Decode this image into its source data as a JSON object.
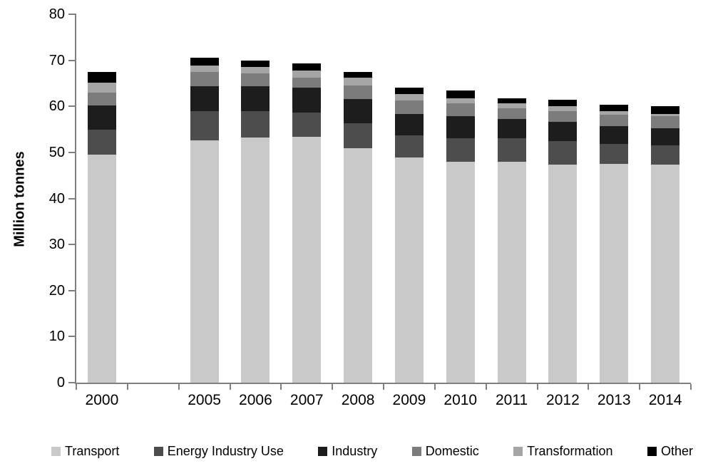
{
  "chart_data": {
    "type": "bar",
    "stacked": true,
    "title": "",
    "xlabel": "",
    "ylabel": "Million tonnes",
    "ylim": [
      0,
      80
    ],
    "ytick_step": 10,
    "grid": false,
    "legend_position": "bottom",
    "categories": [
      "2000",
      "",
      "2005",
      "2006",
      "2007",
      "2008",
      "2009",
      "2010",
      "2011",
      "2012",
      "2013",
      "2014"
    ],
    "series": [
      {
        "name": "Transport",
        "color": "#c9c9c9",
        "values": [
          49.5,
          null,
          52.6,
          53.2,
          53.4,
          50.9,
          48.9,
          48.0,
          47.9,
          47.4,
          47.5,
          47.4
        ]
      },
      {
        "name": "Energy Industry Use",
        "color": "#4d4d4d",
        "values": [
          5.5,
          null,
          6.4,
          5.8,
          5.3,
          5.4,
          4.8,
          5.0,
          5.1,
          5.1,
          4.3,
          4.2
        ]
      },
      {
        "name": "Industry",
        "color": "#1d1d1d",
        "values": [
          5.2,
          null,
          5.4,
          5.4,
          5.4,
          5.3,
          4.6,
          4.9,
          4.2,
          4.1,
          3.9,
          3.7
        ]
      },
      {
        "name": "Domestic",
        "color": "#7c7c7c",
        "values": [
          2.8,
          null,
          3.0,
          2.7,
          2.2,
          2.9,
          3.0,
          2.8,
          2.3,
          2.3,
          2.5,
          2.5
        ]
      },
      {
        "name": "Transformation",
        "color": "#a5a5a5",
        "values": [
          2.1,
          null,
          1.5,
          1.5,
          1.4,
          1.7,
          1.3,
          1.1,
          1.1,
          1.1,
          0.7,
          0.6
        ]
      },
      {
        "name": "Other",
        "color": "#000000",
        "values": [
          2.3,
          null,
          1.7,
          1.3,
          1.7,
          1.3,
          1.4,
          1.6,
          1.2,
          1.4,
          1.5,
          1.6
        ]
      }
    ],
    "totals": [
      67.4,
      null,
      70.6,
      69.9,
      69.4,
      67.5,
      64.0,
      63.4,
      61.8,
      61.4,
      60.4,
      60.0
    ],
    "axis_color": "#808080"
  }
}
